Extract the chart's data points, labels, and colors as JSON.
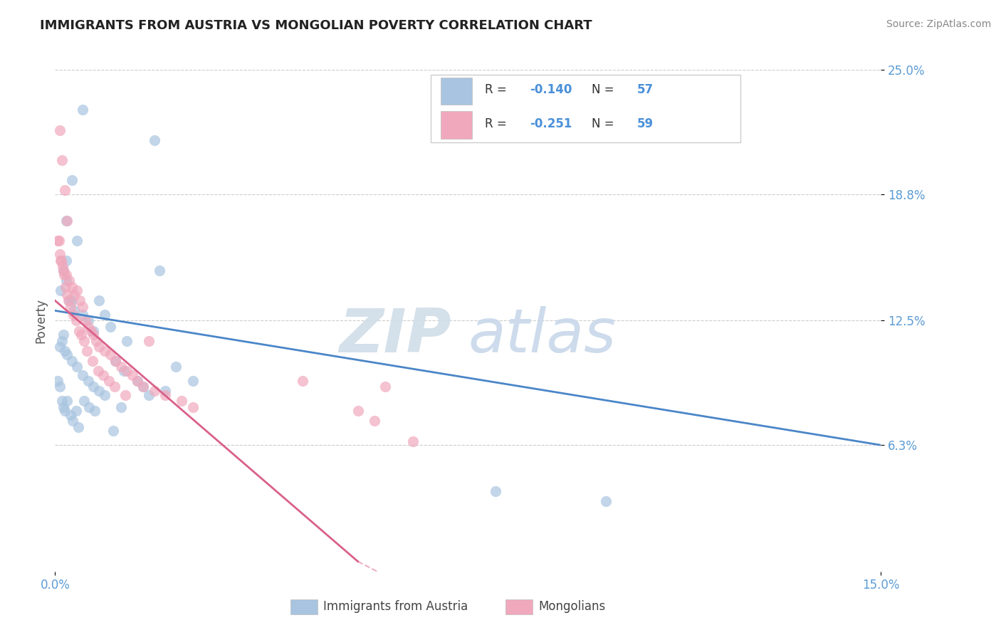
{
  "title": "IMMIGRANTS FROM AUSTRIA VS MONGOLIAN POVERTY CORRELATION CHART",
  "source": "Source: ZipAtlas.com",
  "ylabel": "Poverty",
  "xlim": [
    0.0,
    15.0
  ],
  "ylim": [
    0.0,
    25.0
  ],
  "ytick_positions": [
    25.0,
    18.8,
    12.5,
    6.3
  ],
  "series1_label": "Immigrants from Austria",
  "series1_color": "#a8c4e0",
  "series1_line_color": "#4a86c8",
  "series1_R": -0.14,
  "series1_N": 57,
  "series2_label": "Mongolians",
  "series2_color": "#f0a8bc",
  "series2_line_color": "#d9608a",
  "series2_R": -0.251,
  "series2_N": 59,
  "watermark_zip": "ZIP",
  "watermark_atlas": "atlas",
  "watermark_color": "#c8d8ea",
  "background_color": "#ffffff",
  "legend_R_color": "#333333",
  "legend_val_color": "#4a90d9",
  "series1_x": [
    0.5,
    1.8,
    0.3,
    1.9,
    0.2,
    0.4,
    0.2,
    0.2,
    0.3,
    0.15,
    0.1,
    0.25,
    0.35,
    0.5,
    0.6,
    0.7,
    0.8,
    0.9,
    1.0,
    0.15,
    0.12,
    0.08,
    0.18,
    0.22,
    0.3,
    0.4,
    0.5,
    0.6,
    0.7,
    0.8,
    0.9,
    1.1,
    1.2,
    1.3,
    1.5,
    1.6,
    1.7,
    2.0,
    2.2,
    2.5,
    0.05,
    0.08,
    0.12,
    0.15,
    0.18,
    0.22,
    0.28,
    0.32,
    0.38,
    0.42,
    0.52,
    0.62,
    0.72,
    1.05,
    1.25,
    8.0,
    10.0
  ],
  "series1_y": [
    23.0,
    21.5,
    19.5,
    15.0,
    17.5,
    16.5,
    15.5,
    14.5,
    13.5,
    15.0,
    14.0,
    13.5,
    13.0,
    12.8,
    12.5,
    12.0,
    13.5,
    12.8,
    12.2,
    11.8,
    11.5,
    11.2,
    11.0,
    10.8,
    10.5,
    10.2,
    9.8,
    9.5,
    9.2,
    9.0,
    8.8,
    10.5,
    8.2,
    11.5,
    9.5,
    9.2,
    8.8,
    9.0,
    10.2,
    9.5,
    9.5,
    9.2,
    8.5,
    8.2,
    8.0,
    8.5,
    7.8,
    7.5,
    8.0,
    7.2,
    8.5,
    8.2,
    8.0,
    7.0,
    10.0,
    4.0,
    3.5
  ],
  "series2_x": [
    0.08,
    0.12,
    0.18,
    0.22,
    0.05,
    0.1,
    0.15,
    0.2,
    0.25,
    0.3,
    0.35,
    0.4,
    0.45,
    0.5,
    0.55,
    0.6,
    0.65,
    0.7,
    0.75,
    0.8,
    0.9,
    1.0,
    1.1,
    1.2,
    1.3,
    1.4,
    1.5,
    1.6,
    1.7,
    1.8,
    2.0,
    2.3,
    2.5,
    0.07,
    0.09,
    0.11,
    0.14,
    0.16,
    0.19,
    0.21,
    0.24,
    0.28,
    0.33,
    0.38,
    0.43,
    0.48,
    0.53,
    0.58,
    0.68,
    0.78,
    0.88,
    0.98,
    1.08,
    1.28,
    4.5,
    5.5,
    5.8,
    6.0,
    6.5
  ],
  "series2_y": [
    22.0,
    20.5,
    19.0,
    17.5,
    16.5,
    15.5,
    15.0,
    14.8,
    14.5,
    14.2,
    13.8,
    14.0,
    13.5,
    13.2,
    12.5,
    12.2,
    12.0,
    11.8,
    11.5,
    11.2,
    11.0,
    10.8,
    10.5,
    10.2,
    10.0,
    9.8,
    9.5,
    9.2,
    11.5,
    9.0,
    8.8,
    8.5,
    8.2,
    16.5,
    15.8,
    15.5,
    15.2,
    14.8,
    14.2,
    13.8,
    13.5,
    13.2,
    12.8,
    12.5,
    12.0,
    11.8,
    11.5,
    11.0,
    10.5,
    10.0,
    9.8,
    9.5,
    9.2,
    8.8,
    9.5,
    8.0,
    7.5,
    9.2,
    6.5
  ]
}
